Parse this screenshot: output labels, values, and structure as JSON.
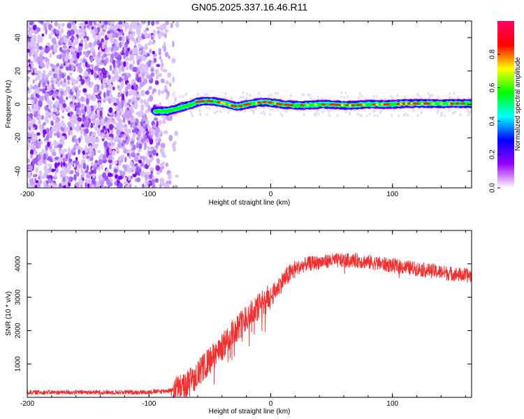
{
  "title": "GN05.2025.337.16.46.R11",
  "chart_data": [
    {
      "type": "heatmap",
      "xlabel": "Height of straight line (km)",
      "ylabel": "Frequency (Hz)",
      "xlim": [
        -200,
        165
      ],
      "ylim": [
        -50,
        50
      ],
      "xticks": [
        -200,
        -100,
        0,
        100
      ],
      "yticks": [
        -40,
        -20,
        0,
        20,
        40
      ],
      "grid": false,
      "noise_region_x": [
        -200,
        -85
      ],
      "signal_ridge": {
        "x": [
          -95,
          -90,
          -85,
          -80,
          -75,
          -70,
          -65,
          -60,
          -55,
          -50,
          -45,
          -40,
          -35,
          -30,
          -25,
          -20,
          -15,
          -10,
          -5,
          0,
          10,
          20,
          30,
          40,
          50,
          60,
          70,
          80,
          90,
          100,
          110,
          120,
          130,
          140,
          150,
          165
        ],
        "freq_hz": [
          -4,
          -4,
          -4,
          -3,
          -2,
          -1,
          0,
          1.5,
          2,
          2,
          1.5,
          1,
          0,
          -1,
          -1,
          0,
          0.5,
          1,
          1.5,
          1,
          0,
          -0.5,
          -0.5,
          0,
          0,
          -0.5,
          -0.5,
          0,
          0,
          0,
          0.5,
          0.5,
          0.5,
          0.5,
          0.5,
          0.5
        ]
      },
      "colorbar": {
        "label": "Normalized spectral amplitude",
        "range": [
          0,
          1
        ],
        "ticks": [
          "0.0",
          "0.2",
          "0.4",
          "0.6",
          "0.8"
        ],
        "colors": [
          "#ffffff",
          "#9900ff",
          "#0000ff",
          "#00ffff",
          "#00ff00",
          "#ffff00",
          "#ff0000",
          "#ff0066"
        ]
      }
    },
    {
      "type": "line",
      "xlabel": "Height of straight line (km)",
      "ylabel": "SNR (10 * v/v)",
      "xlim": [
        -200,
        165
      ],
      "ylim": [
        0,
        5000
      ],
      "xticks": [
        -200,
        -100,
        0,
        100
      ],
      "yticks": [
        1000,
        2000,
        3000,
        4000
      ],
      "grid": false,
      "color": "#ee3030",
      "series": [
        {
          "name": "SNR",
          "x": [
            -200,
            -180,
            -160,
            -140,
            -120,
            -100,
            -90,
            -80,
            -70,
            -60,
            -50,
            -40,
            -30,
            -20,
            -10,
            0,
            10,
            20,
            30,
            40,
            50,
            60,
            70,
            80,
            90,
            100,
            110,
            120,
            130,
            140,
            150,
            160,
            165
          ],
          "y": [
            150,
            150,
            150,
            150,
            150,
            160,
            180,
            220,
            350,
            700,
            1100,
            1500,
            2000,
            2400,
            2700,
            3000,
            3500,
            3850,
            4000,
            4050,
            4100,
            4100,
            4100,
            4050,
            4000,
            3950,
            3900,
            3850,
            3800,
            3750,
            3700,
            3650,
            3650
          ]
        }
      ]
    }
  ]
}
